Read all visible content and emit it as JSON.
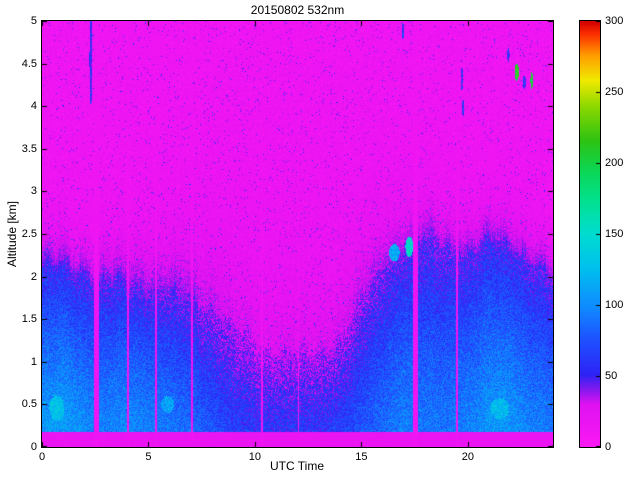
{
  "chart_data": {
    "type": "heatmap",
    "title": "20150802 532nm",
    "xlabel": "UTC Time",
    "ylabel": "Altitude [km]",
    "xlim": [
      0,
      24
    ],
    "ylim": [
      0,
      5
    ],
    "x_ticks": [
      0,
      5,
      10,
      15,
      20
    ],
    "y_ticks": [
      0,
      0.5,
      1,
      1.5,
      2,
      2.5,
      3,
      3.5,
      4,
      4.5,
      5
    ],
    "grid": false,
    "legend": false,
    "colorbar": {
      "min": 0,
      "max": 300,
      "ticks": [
        0,
        50,
        100,
        150,
        200,
        250,
        300
      ],
      "position": "right"
    },
    "colormap_stops": [
      [
        0.0,
        "#fb18f4"
      ],
      [
        0.1,
        "#df12f1"
      ],
      [
        0.135,
        "#8419ee"
      ],
      [
        0.17,
        "#2d23f5"
      ],
      [
        0.25,
        "#1f50ff"
      ],
      [
        0.33,
        "#0f8cff"
      ],
      [
        0.42,
        "#00c0ee"
      ],
      [
        0.5,
        "#00dcd0"
      ],
      [
        0.58,
        "#03e18e"
      ],
      [
        0.65,
        "#0cd653"
      ],
      [
        0.72,
        "#2fc312"
      ],
      [
        0.8,
        "#8ed800"
      ],
      [
        0.86,
        "#f0ea00"
      ],
      [
        0.92,
        "#ff9b00"
      ],
      [
        0.97,
        "#fb2c00"
      ],
      [
        1.0,
        "#cf0000"
      ]
    ],
    "field": {
      "description": "Lidar backscatter curtain: magenta low-signal background with speckle, blue/cyan boundary layer rising from ~2 km (morning) dipping ~1.1 km (midday) to ~2.5 km (evening), vertical magenta data gaps, dark cloud specks aloft",
      "hours": [
        0,
        1,
        2,
        3,
        4,
        5,
        6,
        7,
        8,
        9,
        10,
        11,
        12,
        13,
        14,
        15,
        16,
        17,
        18,
        19,
        20,
        21,
        22,
        23,
        24
      ],
      "bl_top_km": [
        2.05,
        2.1,
        2.05,
        1.9,
        1.9,
        1.85,
        1.8,
        1.75,
        1.6,
        1.4,
        1.25,
        1.15,
        1.1,
        1.15,
        1.3,
        1.7,
        2.1,
        2.35,
        2.45,
        2.35,
        2.3,
        2.35,
        2.3,
        2.2,
        2.0
      ],
      "bl_value": [
        105,
        110,
        100,
        95,
        100,
        95,
        90,
        85,
        75,
        65,
        60,
        60,
        60,
        60,
        65,
        75,
        85,
        95,
        90,
        90,
        95,
        105,
        105,
        95,
        90
      ],
      "fade_km": [
        0.3,
        0.3,
        0.3,
        0.35,
        0.4,
        0.45,
        0.5,
        0.6,
        0.8,
        0.9,
        1.0,
        1.1,
        1.1,
        1.0,
        0.9,
        0.7,
        0.5,
        0.4,
        0.35,
        0.3,
        0.3,
        0.3,
        0.3,
        0.3,
        0.3
      ],
      "background_value": 13,
      "background_noise": 20,
      "speckle_chance": 0.04,
      "speckle_boost": 45,
      "layer_noise": 38,
      "surface_top_km": 0.18,
      "surface_value": 17,
      "gap_value": 13,
      "gaps": [
        [
          2.55,
          0.13
        ],
        [
          4.05,
          0.05
        ],
        [
          5.35,
          0.04
        ],
        [
          7.05,
          0.04
        ],
        [
          10.35,
          0.05
        ],
        [
          12.05,
          0.04
        ],
        [
          17.55,
          0.12
        ],
        [
          19.5,
          0.05
        ]
      ],
      "clouds": [
        [
          2.3,
          4.55,
          0.07,
          0.55,
          55
        ],
        [
          16.95,
          4.88,
          0.05,
          0.1,
          60
        ],
        [
          19.72,
          4.32,
          0.06,
          0.14,
          55
        ],
        [
          19.78,
          3.98,
          0.05,
          0.1,
          60
        ],
        [
          21.9,
          4.6,
          0.06,
          0.08,
          60
        ],
        [
          22.3,
          4.4,
          0.1,
          0.1,
          210
        ],
        [
          22.65,
          4.28,
          0.08,
          0.08,
          60
        ],
        [
          23.0,
          4.3,
          0.06,
          0.1,
          200
        ],
        [
          17.25,
          2.35,
          0.18,
          0.12,
          150
        ],
        [
          16.55,
          2.28,
          0.25,
          0.1,
          115
        ],
        [
          0.7,
          0.45,
          0.35,
          0.15,
          128
        ],
        [
          21.5,
          0.45,
          0.45,
          0.12,
          125
        ],
        [
          5.9,
          0.5,
          0.3,
          0.1,
          112
        ]
      ],
      "seed": 42
    }
  }
}
